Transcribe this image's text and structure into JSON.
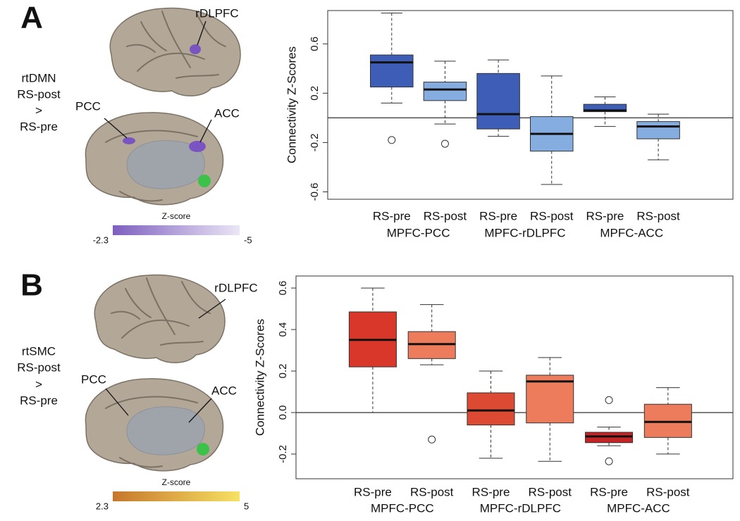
{
  "panels": [
    {
      "letter": "A",
      "condition": [
        "rtDMN",
        "RS-post",
        ">",
        "RS-pre"
      ],
      "lateral_label": "rDLPFC",
      "medial_labels": [
        "PCC",
        "ACC"
      ],
      "colorbar_title": "Z-score",
      "colorbar_min": -2.3,
      "colorbar_max": -5,
      "colorbar_colors": [
        "#7d5fc0",
        "#ebe6f5"
      ]
    },
    {
      "letter": "B",
      "condition": [
        "rtSMC",
        "RS-post",
        ">",
        "RS-pre"
      ],
      "lateral_label": "rDLPFC",
      "medial_labels": [
        "PCC",
        "ACC"
      ],
      "colorbar_title": "Z-score",
      "colorbar_min": 2.3,
      "colorbar_max": 5,
      "colorbar_colors": [
        "#c7762c",
        "#f6e163"
      ]
    }
  ],
  "chart_data": [
    {
      "type": "box",
      "ylabel": "Connectivity Z-Scores",
      "categories": [
        "RS-pre",
        "RS-post",
        "RS-pre",
        "RS-post",
        "RS-pre",
        "RS-post"
      ],
      "groups": [
        "MPFC-PCC",
        "MPFC-rDLPFC",
        "MPFC-ACC"
      ],
      "ylim": [
        -0.66,
        0.87
      ],
      "yticks": [
        -0.6,
        -0.2,
        0.2,
        0.6
      ],
      "reference_line": 0,
      "boxes": [
        {
          "color": "#3d5db6",
          "whisker_low": 0.12,
          "q1": 0.25,
          "median": 0.45,
          "q3": 0.51,
          "whisker_high": 0.85,
          "outliers": [
            -0.18
          ]
        },
        {
          "color": "#86ade0",
          "whisker_low": -0.05,
          "q1": 0.14,
          "median": 0.23,
          "q3": 0.29,
          "whisker_high": 0.46,
          "outliers": [
            -0.21
          ]
        },
        {
          "color": "#3d5db6",
          "whisker_low": -0.15,
          "q1": -0.09,
          "median": 0.03,
          "q3": 0.36,
          "whisker_high": 0.47
        },
        {
          "color": "#86ade0",
          "whisker_low": -0.54,
          "q1": -0.27,
          "median": -0.13,
          "q3": 0.01,
          "whisker_high": 0.34
        },
        {
          "color": "#3d5db6",
          "whisker_low": -0.07,
          "q1": 0.05,
          "median": 0.06,
          "q3": 0.11,
          "whisker_high": 0.17
        },
        {
          "color": "#86ade0",
          "whisker_low": -0.34,
          "q1": -0.17,
          "median": -0.07,
          "q3": -0.03,
          "whisker_high": 0.03
        }
      ]
    },
    {
      "type": "box",
      "ylabel": "Connectivity Z-Scores",
      "categories": [
        "RS-pre",
        "RS-post",
        "RS-pre",
        "RS-post",
        "RS-pre",
        "RS-post"
      ],
      "groups": [
        "MPFC-PCC",
        "MPFC-rDLPFC",
        "MPFC-ACC"
      ],
      "ylim": [
        -0.319,
        0.658
      ],
      "yticks": [
        -0.2,
        {
          "value": 0,
          "label": "0.0"
        },
        0.2,
        0.4,
        0.6
      ],
      "reference_line": 0,
      "boxes": [
        {
          "color": "#d9372a",
          "whisker_low": 0.0,
          "q1": 0.22,
          "median": 0.35,
          "q3": 0.485,
          "whisker_high": 0.6
        },
        {
          "color": "#ec7c5c",
          "whisker_low": 0.23,
          "q1": 0.26,
          "median": 0.33,
          "q3": 0.39,
          "whisker_high": 0.52,
          "outliers": [
            -0.13
          ]
        },
        {
          "color": "#dd4a33",
          "whisker_low": -0.22,
          "q1": -0.06,
          "median": 0.01,
          "q3": 0.095,
          "whisker_high": 0.2
        },
        {
          "color": "#ec7c5c",
          "whisker_low": -0.235,
          "q1": -0.05,
          "median": 0.15,
          "q3": 0.18,
          "whisker_high": 0.265
        },
        {
          "color": "#c52426",
          "whisker_low": -0.16,
          "q1": -0.145,
          "median": -0.115,
          "q3": -0.095,
          "whisker_high": -0.07,
          "outliers": [
            0.06,
            -0.235
          ]
        },
        {
          "color": "#ec7c5c",
          "whisker_low": -0.2,
          "q1": -0.12,
          "median": -0.045,
          "q3": 0.04,
          "whisker_high": 0.12
        }
      ]
    }
  ]
}
